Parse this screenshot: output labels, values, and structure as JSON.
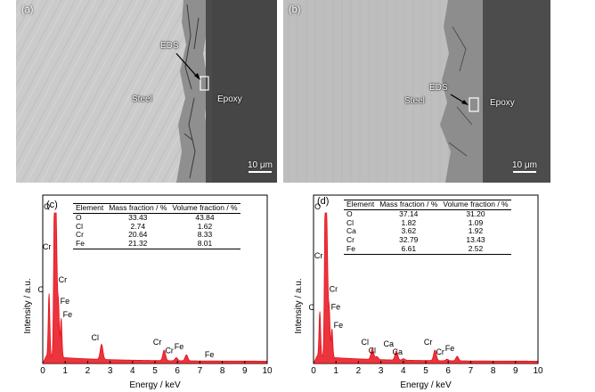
{
  "panels": {
    "a": {
      "label": "(a)",
      "steel": "Steel",
      "epoxy": "Epoxy",
      "eds": "EDS",
      "scale": "10 μm"
    },
    "b": {
      "label": "(b)",
      "steel": "Steel",
      "epoxy": "Epoxy",
      "eds": "EDS",
      "scale": "10 μm"
    }
  },
  "colors": {
    "spectrum": "#e8101a",
    "steel_a": "#c9c9c9",
    "steel_b": "#bdbdbd",
    "rust": "#8e8e8e",
    "epoxy": "#4a4a4a"
  },
  "chart_data": [
    {
      "panel": "(c)",
      "type": "line",
      "xlabel": "Energy / keV",
      "ylabel": "Intensity / a.u.",
      "xlim": [
        0,
        10
      ],
      "xticks": [
        0,
        1,
        2,
        3,
        4,
        5,
        6,
        7,
        8,
        9,
        10
      ],
      "peaks": [
        {
          "label": "C",
          "x": 0.28,
          "y": 0.45
        },
        {
          "label": "O",
          "x": 0.52,
          "y": 1.0
        },
        {
          "label": "Cr",
          "x": 0.57,
          "y": 0.74
        },
        {
          "label": "Cr",
          "x": 0.62,
          "y": 0.52
        },
        {
          "label": "Fe",
          "x": 0.7,
          "y": 0.38
        },
        {
          "label": "Fe",
          "x": 0.82,
          "y": 0.29
        },
        {
          "label": "Cl",
          "x": 2.62,
          "y": 0.13
        },
        {
          "label": "Cr",
          "x": 5.41,
          "y": 0.1
        },
        {
          "label": "Cr",
          "x": 5.95,
          "y": 0.05
        },
        {
          "label": "Fe",
          "x": 6.4,
          "y": 0.07
        },
        {
          "label": "Fe",
          "x": 7.06,
          "y": 0.03
        }
      ],
      "table": {
        "headers": [
          "Element",
          "Mass fraction / %",
          "Volume fraction / %"
        ],
        "rows": [
          [
            "O",
            "33.43",
            "43.84"
          ],
          [
            "Cl",
            "2.74",
            "1.62"
          ],
          [
            "Cr",
            "20.64",
            "8.33"
          ],
          [
            "Fe",
            "21.32",
            "8.01"
          ]
        ]
      }
    },
    {
      "panel": "(d)",
      "type": "line",
      "xlabel": "Energy / keV",
      "ylabel": "Intensity / a.u.",
      "xlim": [
        0,
        10
      ],
      "xticks": [
        0,
        1,
        2,
        3,
        4,
        5,
        6,
        7,
        8,
        9,
        10
      ],
      "peaks": [
        {
          "label": "C",
          "x": 0.28,
          "y": 0.33
        },
        {
          "label": "O",
          "x": 0.52,
          "y": 1.0
        },
        {
          "label": "Cr",
          "x": 0.57,
          "y": 0.68
        },
        {
          "label": "Cr",
          "x": 0.62,
          "y": 0.46
        },
        {
          "label": "Fe",
          "x": 0.7,
          "y": 0.34
        },
        {
          "label": "Fe",
          "x": 0.82,
          "y": 0.22
        },
        {
          "label": "Cl",
          "x": 2.62,
          "y": 0.1
        },
        {
          "label": "Cl",
          "x": 2.82,
          "y": 0.05
        },
        {
          "label": "Ca",
          "x": 3.69,
          "y": 0.09
        },
        {
          "label": "Ca",
          "x": 4.01,
          "y": 0.04
        },
        {
          "label": "Cr",
          "x": 5.41,
          "y": 0.1
        },
        {
          "label": "Cr",
          "x": 5.95,
          "y": 0.04
        },
        {
          "label": "Fe",
          "x": 6.4,
          "y": 0.06
        }
      ],
      "table": {
        "headers": [
          "Element",
          "Mass fraction / %",
          "Volume fraction / %"
        ],
        "rows": [
          [
            "O",
            "37.14",
            "31.20"
          ],
          [
            "Cl",
            "1.82",
            "1.09"
          ],
          [
            "Ca",
            "3.62",
            "1.92"
          ],
          [
            "Cr",
            "32.79",
            "13.43"
          ],
          [
            "Fe",
            "6.61",
            "2.52"
          ]
        ]
      }
    }
  ]
}
